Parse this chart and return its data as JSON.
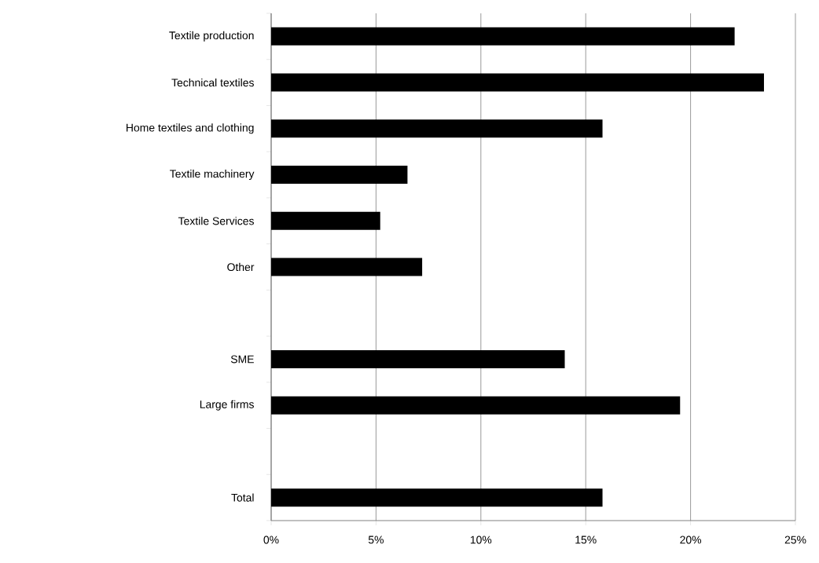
{
  "chart_data": {
    "type": "bar",
    "orientation": "horizontal",
    "categories": [
      "Textile production",
      "Technical textiles",
      "Home textiles and clothing",
      "Textile machinery",
      "Textile Services",
      "Other",
      null,
      "SME",
      "Large firms",
      null,
      "Total"
    ],
    "values": [
      22.1,
      23.5,
      15.8,
      6.5,
      5.2,
      7.2,
      null,
      14.0,
      19.5,
      null,
      15.8
    ],
    "color": "#000000",
    "xlim": [
      0,
      25
    ],
    "xticks": [
      {
        "value": 0,
        "label": "0%"
      },
      {
        "value": 5,
        "label": "5%"
      },
      {
        "value": 10,
        "label": "10%"
      },
      {
        "value": 15,
        "label": "15%"
      },
      {
        "value": 20,
        "label": "20%"
      },
      {
        "value": 25,
        "label": "25%"
      }
    ],
    "grid": "x"
  }
}
